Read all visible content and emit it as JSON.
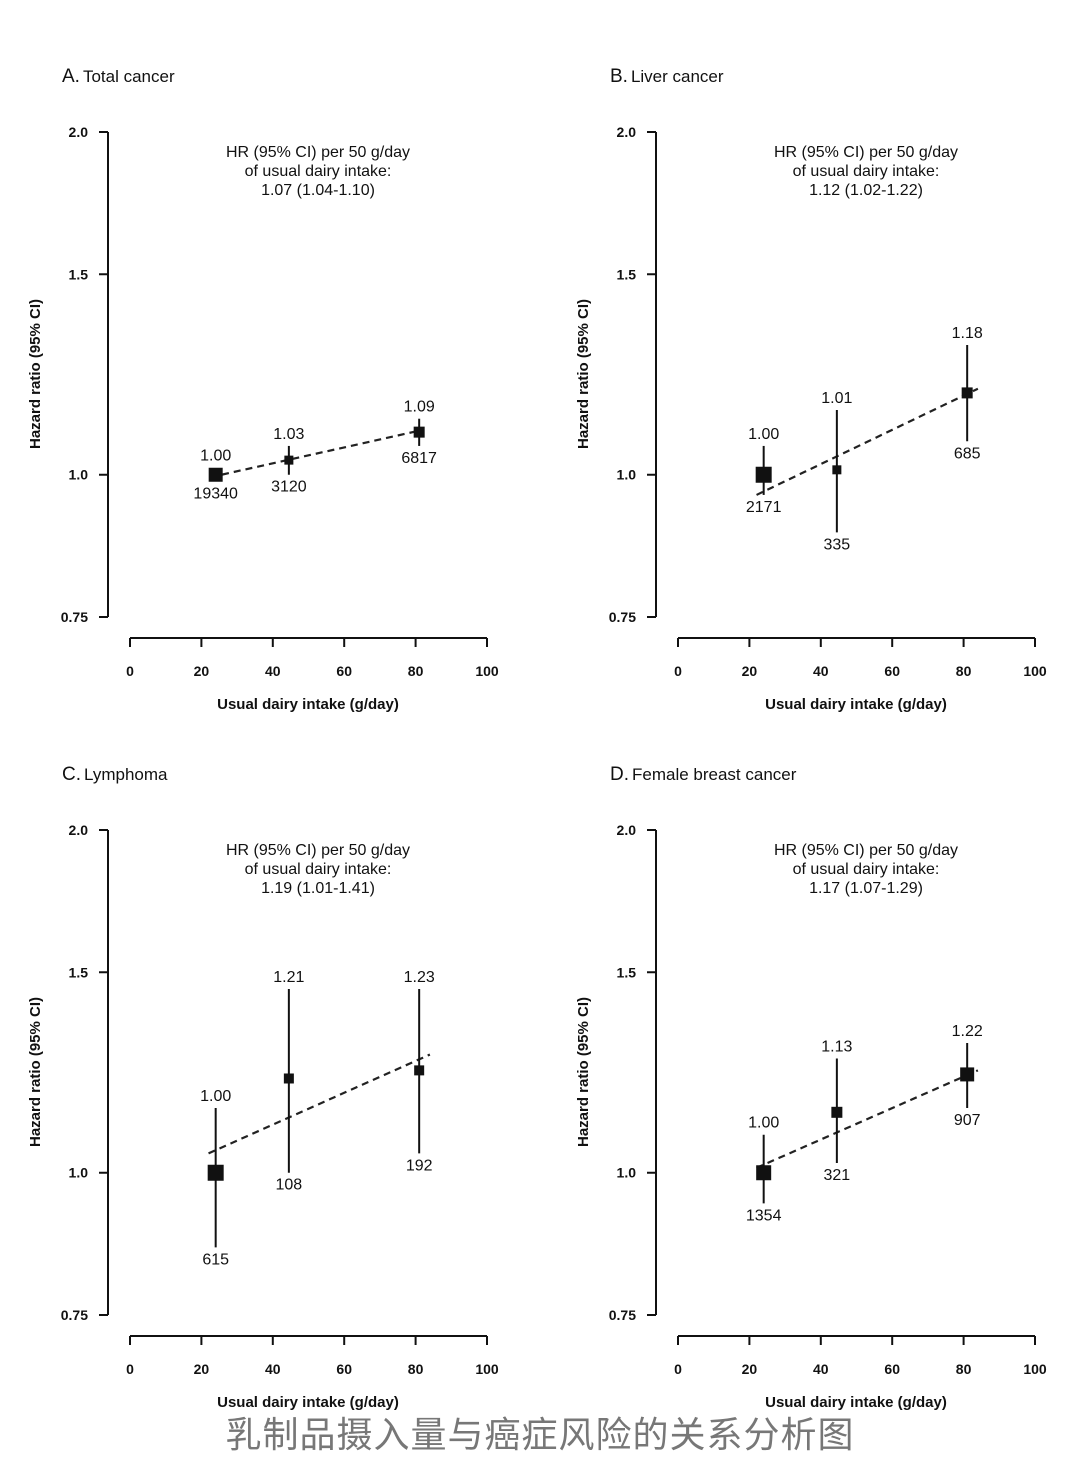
{
  "caption": "乳制品摄入量与癌症风险的关系分析图",
  "chart_data": [
    {
      "type": "scatter",
      "panel_letter": "A.",
      "title": "Total cancer",
      "xlabel": "Usual dairy intake (g/day)",
      "ylabel": "Hazard ratio (95% CI)",
      "xlim": [
        0,
        100
      ],
      "xticks": [
        0,
        20,
        40,
        60,
        80,
        100
      ],
      "ylim": [
        0.75,
        2.0
      ],
      "yscale": "log",
      "yticks": [
        0.75,
        1.0,
        1.5,
        2.0
      ],
      "ytick_labels": [
        "0.75",
        "1.0",
        "1.5",
        "2.0"
      ],
      "annotation": [
        "HR (95% CI) per 50 g/day",
        "of usual dairy intake:",
        "1.07 (1.04-1.10)"
      ],
      "points": [
        {
          "x": 24,
          "hr": 1.0,
          "lo": 1.0,
          "hi": 1.0,
          "hr_label": "1.00",
          "n": "19340",
          "size": 14
        },
        {
          "x": 44.5,
          "hr": 1.03,
          "lo": 1.0,
          "hi": 1.06,
          "hr_label": "1.03",
          "n": "3120",
          "size": 9
        },
        {
          "x": 81,
          "hr": 1.09,
          "lo": 1.06,
          "hi": 1.12,
          "hr_label": "1.09",
          "n": "6817",
          "size": 11
        }
      ],
      "trend": {
        "x": [
          22.5,
          81.5
        ],
        "y": [
          0.995,
          1.094
        ]
      }
    },
    {
      "type": "scatter",
      "panel_letter": "B.",
      "title": "Liver cancer",
      "xlabel": "Usual dairy intake (g/day)",
      "ylabel": "Hazard ratio (95% CI)",
      "xlim": [
        0,
        100
      ],
      "xticks": [
        0,
        20,
        40,
        60,
        80,
        100
      ],
      "ylim": [
        0.75,
        2.0
      ],
      "yscale": "log",
      "yticks": [
        0.75,
        1.0,
        1.5,
        2.0
      ],
      "ytick_labels": [
        "0.75",
        "1.0",
        "1.5",
        "2.0"
      ],
      "annotation": [
        "HR (95% CI) per 50 g/day",
        "of usual dairy intake:",
        "1.12 (1.02-1.22)"
      ],
      "points": [
        {
          "x": 24,
          "hr": 1.0,
          "lo": 0.96,
          "hi": 1.06,
          "hr_label": "1.00",
          "n": "2171",
          "size": 16
        },
        {
          "x": 44.5,
          "hr": 1.01,
          "lo": 0.89,
          "hi": 1.14,
          "hr_label": "1.01",
          "n": "335",
          "size": 9
        },
        {
          "x": 81,
          "hr": 1.18,
          "lo": 1.07,
          "hi": 1.3,
          "hr_label": "1.18",
          "n": "685",
          "size": 11
        }
      ],
      "trend": {
        "x": [
          22,
          84
        ],
        "y": [
          0.96,
          1.19
        ]
      }
    },
    {
      "type": "scatter",
      "panel_letter": "C.",
      "title": "Lymphoma",
      "xlabel": "Usual dairy intake (g/day)",
      "ylabel": "Hazard ratio (95% CI)",
      "xlim": [
        0,
        100
      ],
      "xticks": [
        0,
        20,
        40,
        60,
        80,
        100
      ],
      "ylim": [
        0.75,
        2.0
      ],
      "yscale": "log",
      "yticks": [
        0.75,
        1.0,
        1.5,
        2.0
      ],
      "ytick_labels": [
        "0.75",
        "1.0",
        "1.5",
        "2.0"
      ],
      "annotation": [
        "HR (95% CI) per 50 g/day",
        "of usual dairy intake:",
        "1.19 (1.01-1.41)"
      ],
      "points": [
        {
          "x": 24,
          "hr": 1.0,
          "lo": 0.86,
          "hi": 1.14,
          "hr_label": "1.00",
          "n": "615",
          "size": 16
        },
        {
          "x": 44.5,
          "hr": 1.21,
          "lo": 1.0,
          "hi": 1.45,
          "hr_label": "1.21",
          "n": "108",
          "size": 10
        },
        {
          "x": 81,
          "hr": 1.23,
          "lo": 1.04,
          "hi": 1.45,
          "hr_label": "1.23",
          "n": "192",
          "size": 10
        }
      ],
      "trend": {
        "x": [
          22,
          84
        ],
        "y": [
          1.04,
          1.27
        ]
      }
    },
    {
      "type": "scatter",
      "panel_letter": "D.",
      "title": "Female breast cancer",
      "xlabel": "Usual dairy intake (g/day)",
      "ylabel": "Hazard ratio (95% CI)",
      "xlim": [
        0,
        100
      ],
      "xticks": [
        0,
        20,
        40,
        60,
        80,
        100
      ],
      "ylim": [
        0.75,
        2.0
      ],
      "yscale": "log",
      "yticks": [
        0.75,
        1.0,
        1.5,
        2.0
      ],
      "ytick_labels": [
        "0.75",
        "1.0",
        "1.5",
        "2.0"
      ],
      "annotation": [
        "HR (95% CI) per 50 g/day",
        "of usual dairy intake:",
        "1.17 (1.07-1.29)"
      ],
      "points": [
        {
          "x": 24,
          "hr": 1.0,
          "lo": 0.94,
          "hi": 1.08,
          "hr_label": "1.00",
          "n": "1354",
          "size": 15
        },
        {
          "x": 44.5,
          "hr": 1.13,
          "lo": 1.02,
          "hi": 1.26,
          "hr_label": "1.13",
          "n": "321",
          "size": 11
        },
        {
          "x": 81,
          "hr": 1.22,
          "lo": 1.14,
          "hi": 1.3,
          "hr_label": "1.22",
          "n": "907",
          "size": 14
        }
      ],
      "trend": {
        "x": [
          22,
          84
        ],
        "y": [
          1.01,
          1.23
        ]
      }
    }
  ]
}
